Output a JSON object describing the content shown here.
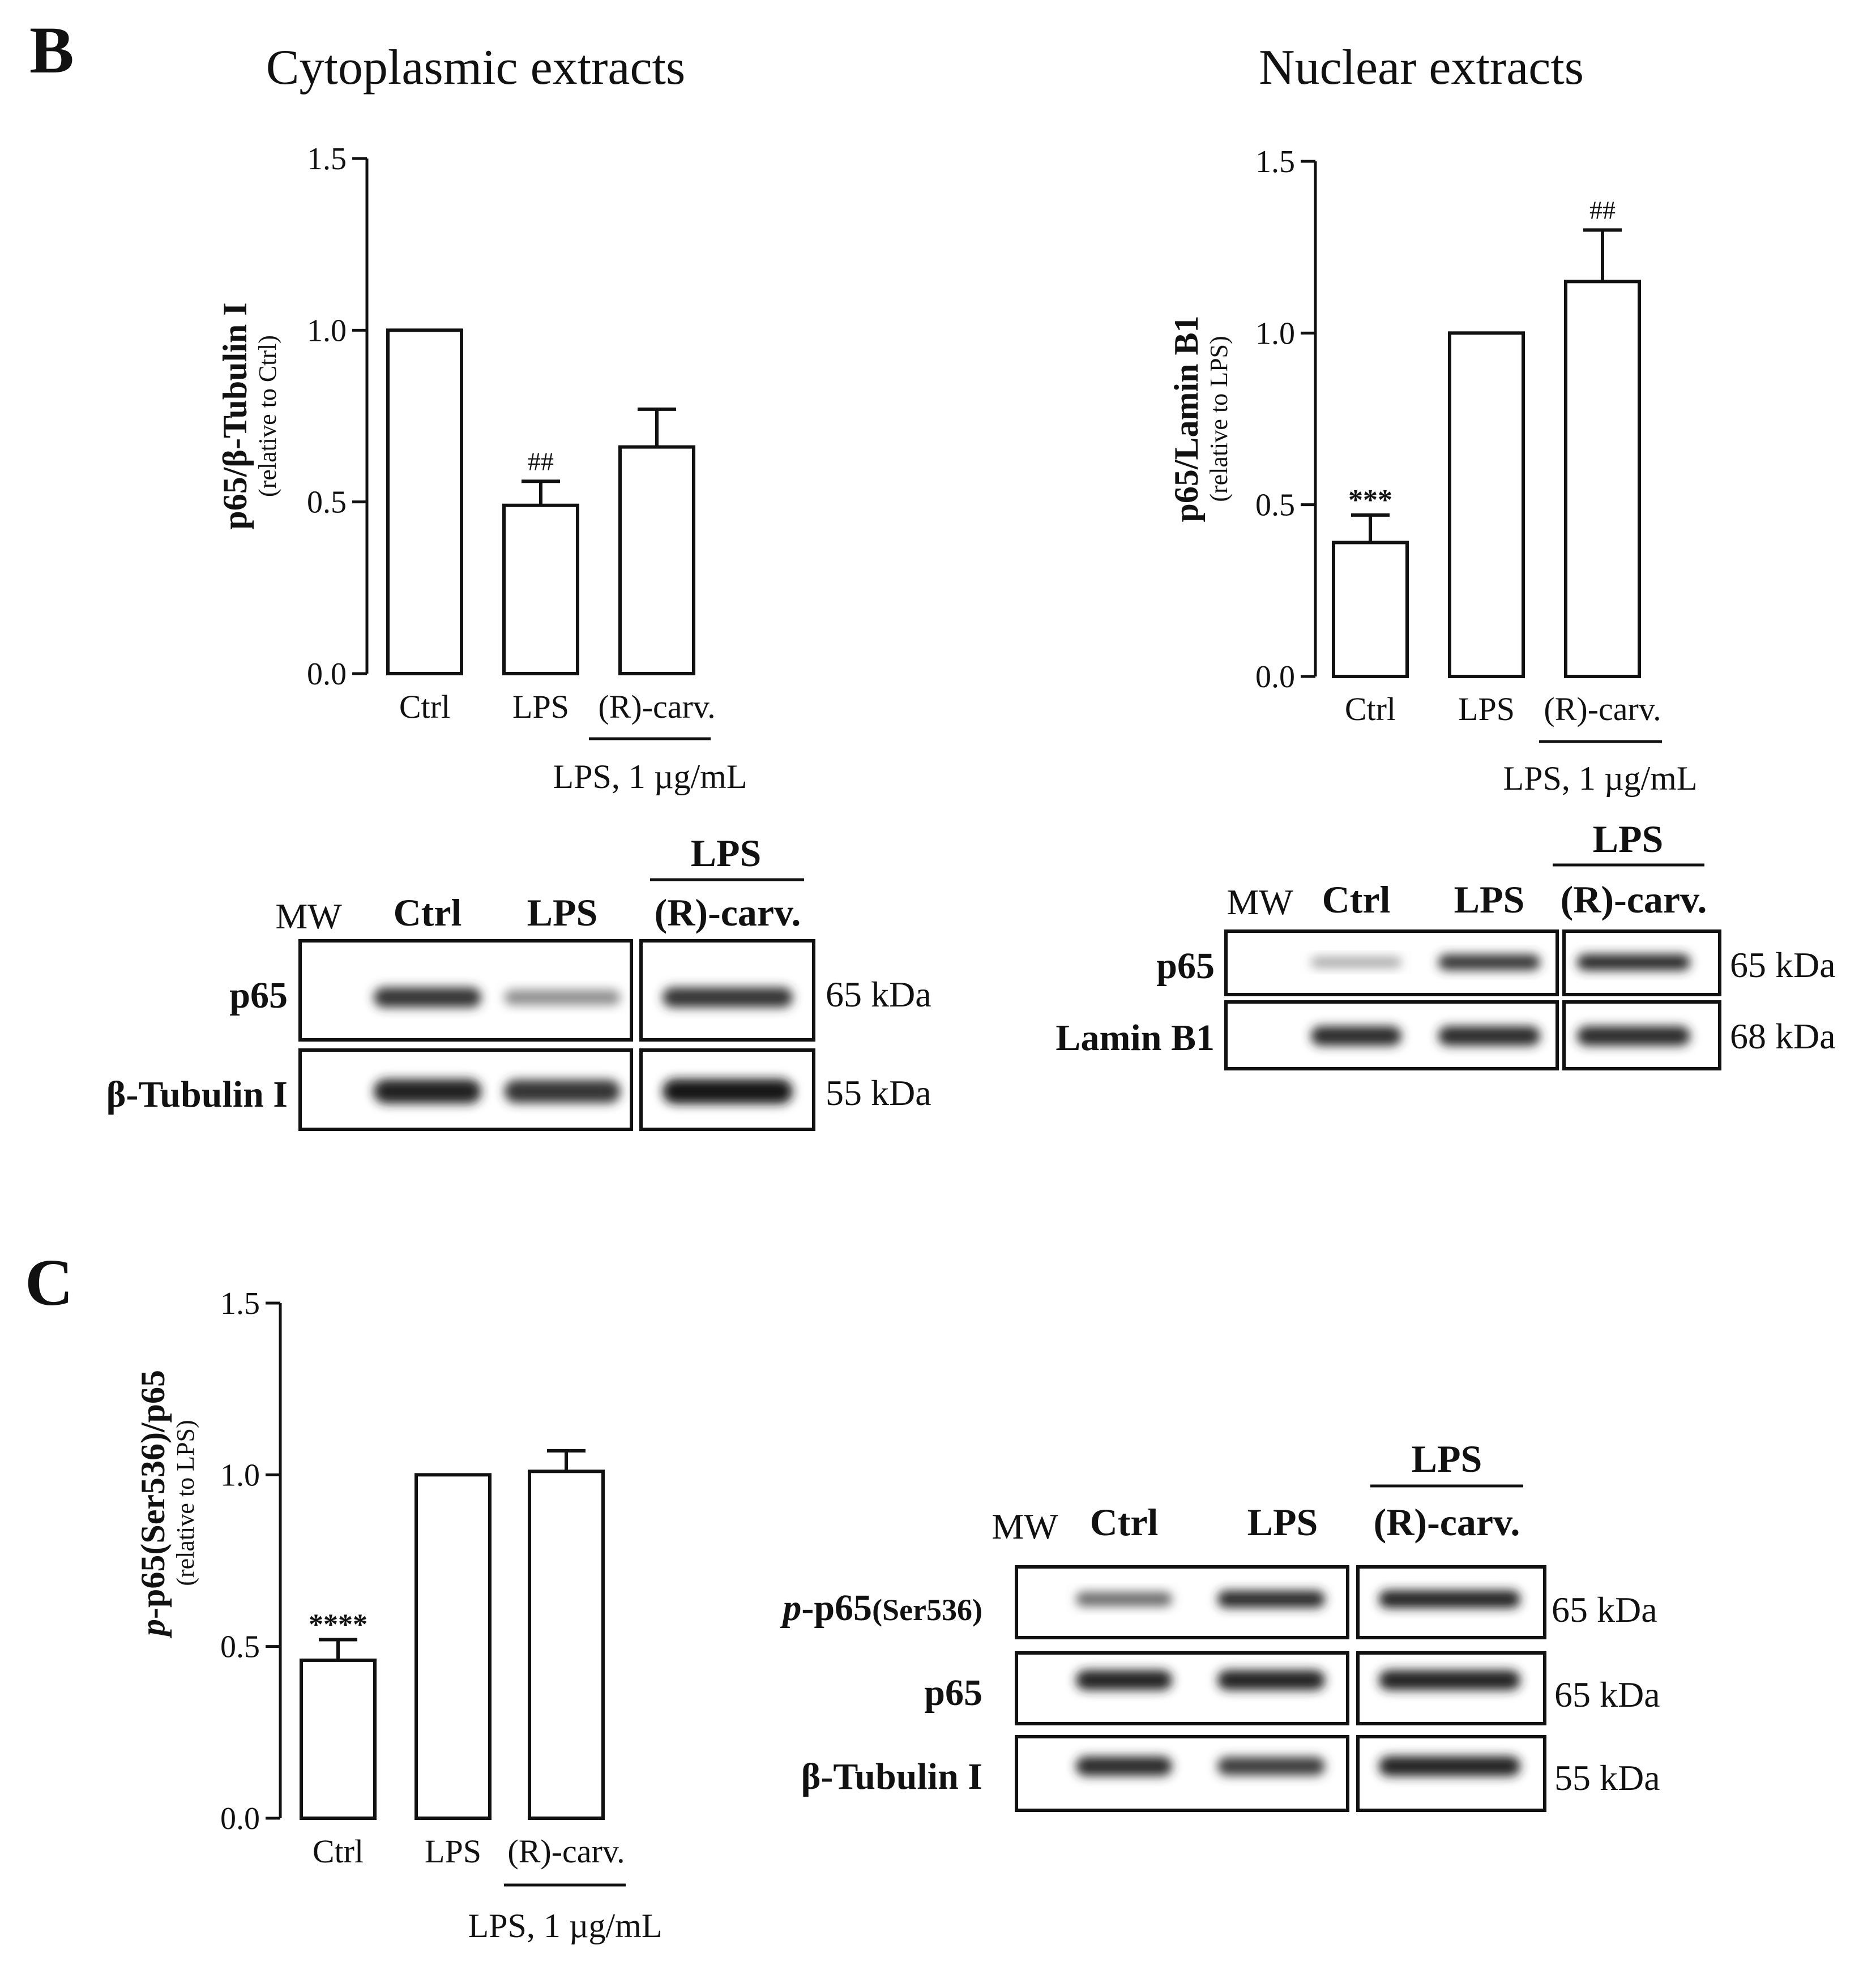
{
  "panel_labels": {
    "b": "B",
    "c": "C"
  },
  "common": {
    "condition_line": "LPS, 1 µg/mL"
  },
  "chart_data": [
    {
      "type": "bar",
      "title": "Cytoplasmic extracts",
      "ylabel": "p65/β-Tubulin I",
      "ylabel_sub": "(relative to Ctrl)",
      "categories": [
        "Ctrl",
        "LPS",
        "(R)-carv."
      ],
      "values": [
        1.0,
        0.49,
        0.66
      ],
      "errors": [
        0,
        0.07,
        0.11
      ],
      "significance": [
        "",
        "##",
        ""
      ],
      "ylim": [
        0,
        1.5
      ],
      "yticks": [
        "0.0",
        "0.5",
        "1.0",
        "1.5"
      ],
      "condition": "LPS, 1 µg/mL",
      "grid": false,
      "bar_color": "#ffffff"
    },
    {
      "type": "bar",
      "title": "Nuclear extracts",
      "ylabel": "p65/Lamin B1",
      "ylabel_sub": "(relative to LPS)",
      "categories": [
        "Ctrl",
        "LPS",
        "(R)-carv."
      ],
      "values": [
        0.39,
        1.0,
        1.15
      ],
      "errors": [
        0.08,
        0,
        0.15
      ],
      "significance": [
        "***",
        "",
        "##"
      ],
      "ylim": [
        0,
        1.5
      ],
      "yticks": [
        "0.0",
        "0.5",
        "1.0",
        "1.5"
      ],
      "condition": "LPS, 1 µg/mL",
      "grid": false,
      "bar_color": "#ffffff"
    },
    {
      "type": "bar",
      "title": "",
      "ylabel": "p-p65(Ser536)/p65",
      "ylabel_sub": "(relative to LPS)",
      "categories": [
        "Ctrl",
        "LPS",
        "(R)-carv."
      ],
      "values": [
        0.46,
        1.0,
        1.01
      ],
      "errors": [
        0.06,
        0,
        0.06
      ],
      "significance": [
        "****",
        "",
        ""
      ],
      "ylim": [
        0,
        1.5
      ],
      "yticks": [
        "0.0",
        "0.5",
        "1.0",
        "1.5"
      ],
      "condition": "LPS, 1 µg/mL",
      "grid": false,
      "bar_color": "#ffffff"
    }
  ],
  "blots": [
    {
      "group_header": "LPS",
      "mw": "MW",
      "lanes": [
        "Ctrl",
        "LPS",
        "(R)-carv."
      ],
      "rows": [
        {
          "label": "p65",
          "kda": "65 kDa",
          "intensity": [
            0.0,
            0.85,
            0.35,
            0.85
          ]
        },
        {
          "label": "β-Tubulin I",
          "kda": "55 kDa",
          "intensity": [
            0.0,
            0.95,
            0.85,
            1.0
          ]
        }
      ]
    },
    {
      "group_header": "LPS",
      "mw": "MW",
      "lanes": [
        "Ctrl",
        "LPS",
        "(R)-carv."
      ],
      "rows": [
        {
          "label": "p65",
          "kda": "65 kDa",
          "intensity": [
            0.0,
            0.2,
            0.85,
            0.9
          ]
        },
        {
          "label": "Lamin B1",
          "kda": "68 kDa",
          "intensity": [
            0.0,
            0.9,
            0.9,
            0.9
          ]
        }
      ]
    },
    {
      "group_header": "LPS",
      "mw": "MW",
      "lanes": [
        "Ctrl",
        "LPS",
        "(R)-carv."
      ],
      "rows": [
        {
          "label_italic": "p",
          "label": "-p65",
          "label_suffix": "(Ser536)",
          "kda": "65 kDa",
          "intensity": [
            0.0,
            0.55,
            0.9,
            0.95
          ]
        },
        {
          "label": "p65",
          "kda": "65 kDa",
          "intensity": [
            0.0,
            0.95,
            0.95,
            0.95
          ]
        },
        {
          "label": "β-Tubulin I",
          "kda": "55 kDa",
          "intensity": [
            0.0,
            0.9,
            0.8,
            0.95
          ]
        }
      ]
    }
  ]
}
